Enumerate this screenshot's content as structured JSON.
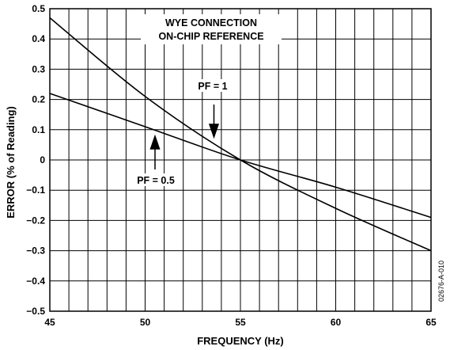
{
  "chart_data": {
    "type": "line",
    "xlabel": "FREQUENCY (Hz)",
    "ylabel": "ERROR (% of Reading)",
    "xlim": [
      45,
      65
    ],
    "ylim": [
      -0.5,
      0.5
    ],
    "x_ticks": [
      45,
      50,
      55,
      60,
      65
    ],
    "y_ticks": [
      0.5,
      0.4,
      0.3,
      0.2,
      0.1,
      0,
      -0.1,
      -0.2,
      -0.3,
      -0.4,
      -0.5
    ],
    "y_tick_labels": [
      "0.5",
      "0.4",
      "0.3",
      "0.2",
      "0.1",
      "0",
      "−0.1",
      "−0.2",
      "−0.3",
      "−0.4",
      "−0.5"
    ],
    "grid": true,
    "series": [
      {
        "name": "PF = 1",
        "x": [
          45,
          50,
          55,
          60,
          65
        ],
        "y": [
          0.47,
          0.21,
          0.0,
          -0.16,
          -0.3
        ]
      },
      {
        "name": "PF = 0.5",
        "x": [
          45,
          50,
          55,
          60,
          65
        ],
        "y": [
          0.22,
          0.11,
          0.0,
          -0.09,
          -0.19
        ]
      }
    ],
    "annotations": {
      "title_line1": "WYE CONNECTION",
      "title_line2": "ON-CHIP REFERENCE",
      "pf1_label": "PF = 1",
      "pf05_label": "PF = 0.5"
    },
    "figure_id": "02676-A-010"
  }
}
